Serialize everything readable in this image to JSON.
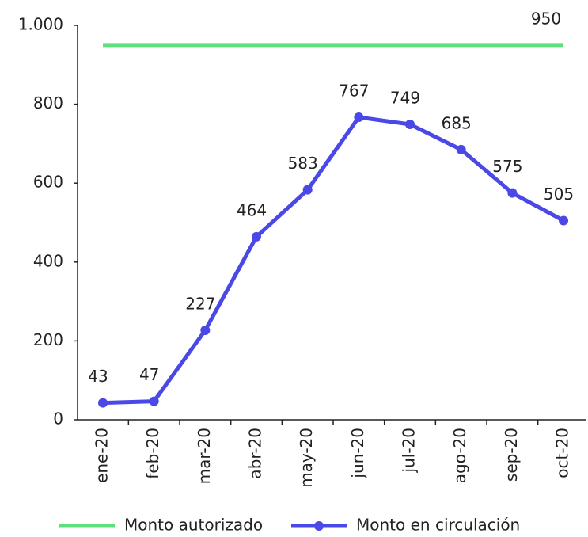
{
  "chart_data": {
    "type": "line",
    "categories": [
      "ene-20",
      "feb-20",
      "mar-20",
      "abr-20",
      "may-20",
      "jun-20",
      "jul-20",
      "ago-20",
      "sep-20",
      "oct-20"
    ],
    "series": [
      {
        "name": "Monto autorizado",
        "color": "#5fe07a",
        "values": [
          950,
          950,
          950,
          950,
          950,
          950,
          950,
          950,
          950,
          950
        ]
      },
      {
        "name": "Monto en circulación",
        "color": "#4a48e6",
        "values": [
          43,
          47,
          227,
          464,
          583,
          767,
          749,
          685,
          575,
          505
        ]
      }
    ],
    "ylim": [
      0,
      1000
    ],
    "yticks": [
      0,
      200,
      400,
      600,
      800,
      {
        "value": 1000,
        "label": "1.000"
      }
    ],
    "grid": false,
    "legend": "bottom"
  }
}
